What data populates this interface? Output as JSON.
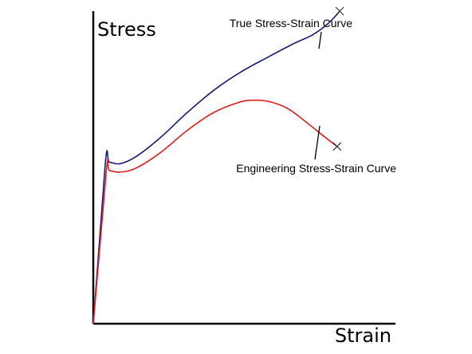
{
  "chart_data": {
    "type": "line",
    "title": "",
    "xlabel": "Strain",
    "ylabel": "Stress",
    "xlim": [
      0,
      100
    ],
    "ylim": [
      0,
      100
    ],
    "grid": false,
    "legend": "none",
    "series": [
      {
        "name": "True Stress-Strain Curve",
        "color": "#1a1a7a",
        "end_marker": "x",
        "x": [
          0,
          4.5,
          6,
          10,
          16,
          25,
          35,
          45,
          55,
          65,
          75,
          82,
          88,
          92
        ],
        "y": [
          0,
          51.5,
          51.7,
          51.2,
          53.5,
          59.5,
          67.5,
          74.7,
          80.5,
          85.2,
          89.7,
          92.5,
          96.3,
          100
        ]
      },
      {
        "name": "Engineering Stress-Strain Curve",
        "color": "#e02020",
        "end_marker": "x",
        "x": [
          0,
          4.9,
          6,
          10,
          16,
          25,
          35,
          45,
          55,
          60,
          65,
          72,
          78,
          85,
          91
        ],
        "y": [
          0,
          49.2,
          49,
          48.5,
          49.8,
          54.7,
          61.8,
          67.6,
          71,
          71.5,
          71.2,
          69.1,
          65.5,
          60.7,
          56.7
        ]
      }
    ]
  }
}
